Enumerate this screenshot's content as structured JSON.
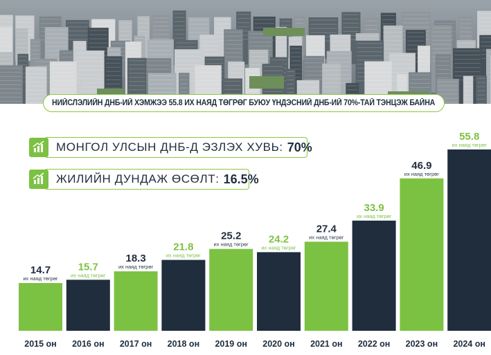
{
  "headline": {
    "part1": "НИЙСЛЭЛИЙН ДНБ-ИЙ ХЭМЖЭЭ ",
    "part2": "55.8 ИХ НАЯД ТӨГРӨГ",
    "part3": " БУЮУ ҮНДЭСНИЙ ДНБ-ИЙ ",
    "part4": "70%",
    "part5": "-ТАЙ ТЭНЦЭЖ БАЙНА"
  },
  "stats": [
    {
      "label": "МОНГОЛ УЛСЫН ДНБ-Д ЭЗЛЭХ ХУВЬ:",
      "value": "70%",
      "icon": "bar-chart-growth-icon"
    },
    {
      "label": "ЖИЛИЙН ДУНДАЖ ӨСӨЛТ:",
      "value": "16.5%",
      "icon": "bar-chart-growth-icon"
    }
  ],
  "colors": {
    "green": "#7cc242",
    "navy": "#1f2d3d",
    "green_text": "#7cc242",
    "unit_text": "#2b3a4a"
  },
  "chart_data": {
    "type": "bar",
    "categories": [
      "2015 он",
      "2016 он",
      "2017 он",
      "2018 он",
      "2019 он",
      "2020 он",
      "2021 он",
      "2022 он",
      "2023 он",
      "2024 он"
    ],
    "values": [
      14.7,
      15.7,
      18.3,
      21.8,
      25.2,
      24.2,
      27.4,
      33.9,
      46.9,
      55.8
    ],
    "value_labels": [
      "14.7",
      "15.7",
      "18.3",
      "21.8",
      "25.2",
      "24.2",
      "27.4",
      "33.9",
      "46.9",
      "55.8"
    ],
    "unit_label": "их наяд төгрөг",
    "bar_colors": [
      "green",
      "navy",
      "green",
      "navy",
      "green",
      "navy",
      "green",
      "navy",
      "green",
      "navy"
    ],
    "label_colors": [
      "navy",
      "green",
      "navy",
      "green",
      "navy",
      "green",
      "navy",
      "green",
      "navy",
      "green"
    ],
    "ylim": [
      0,
      60
    ],
    "grid": false,
    "title": "",
    "xlabel": "",
    "ylabel": ""
  }
}
